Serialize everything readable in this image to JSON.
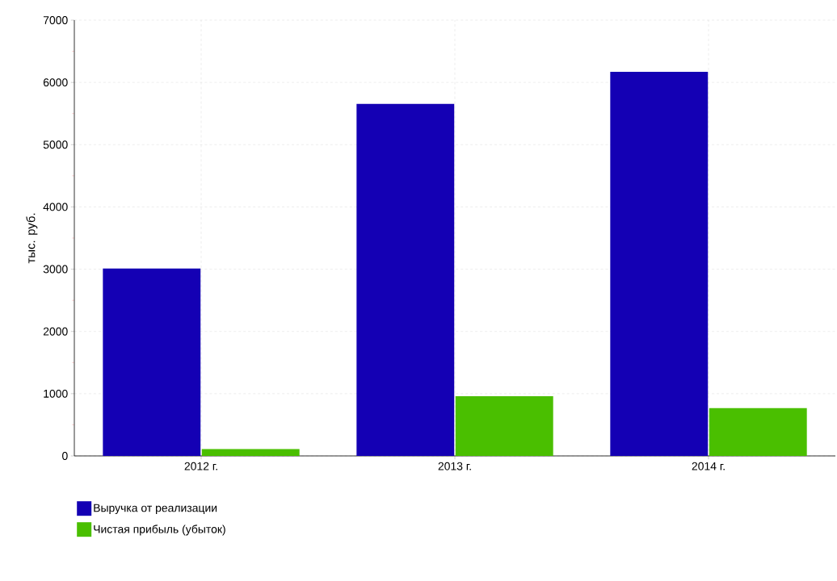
{
  "chart_data": {
    "type": "bar",
    "ylabel": "тыс. руб.",
    "categories": [
      "2012 г.",
      "2013 г.",
      "2014 г."
    ],
    "series": [
      {
        "name": "Выручка от реализации",
        "color": "#1400b4",
        "values": [
          3010,
          5655,
          6170
        ]
      },
      {
        "name": "Чистая прибыль (убыток)",
        "color": "#4abf00",
        "values": [
          110,
          960,
          768
        ]
      }
    ],
    "ylim": [
      0,
      7000
    ],
    "yticks": [
      0,
      1000,
      2000,
      3000,
      4000,
      5000,
      6000,
      7000
    ],
    "grid": true,
    "legend": "bottom left"
  }
}
